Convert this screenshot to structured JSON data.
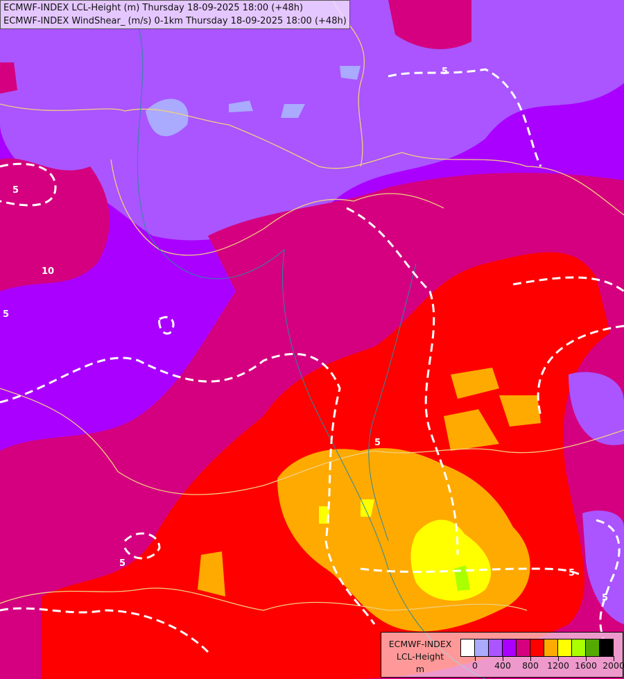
{
  "header": {
    "line1": "ECMWF-INDEX LCL-Height (m) Thursday 18-09-2025 18:00 (+48h)",
    "line2": "ECMWF-INDEX WindShear_ (m/s) 0-1km Thursday 18-09-2025 18:00 (+48h)"
  },
  "legend": {
    "title_line1": "ECMWF-INDEX",
    "title_line2": "LCL-Height",
    "unit": "m",
    "colors": [
      "#ffffff",
      "#aaaaff",
      "#aa55ff",
      "#aa00ff",
      "#d4007f",
      "#ff0000",
      "#ffaa00",
      "#ffff00",
      "#aaff00",
      "#55aa00",
      "#000000"
    ],
    "tick_labels": [
      "0",
      "400",
      "800",
      "1200",
      "1600",
      "2000"
    ]
  },
  "contour_labels": [
    "5",
    "5",
    "10",
    "5",
    "5",
    "5",
    "5",
    "5"
  ]
}
